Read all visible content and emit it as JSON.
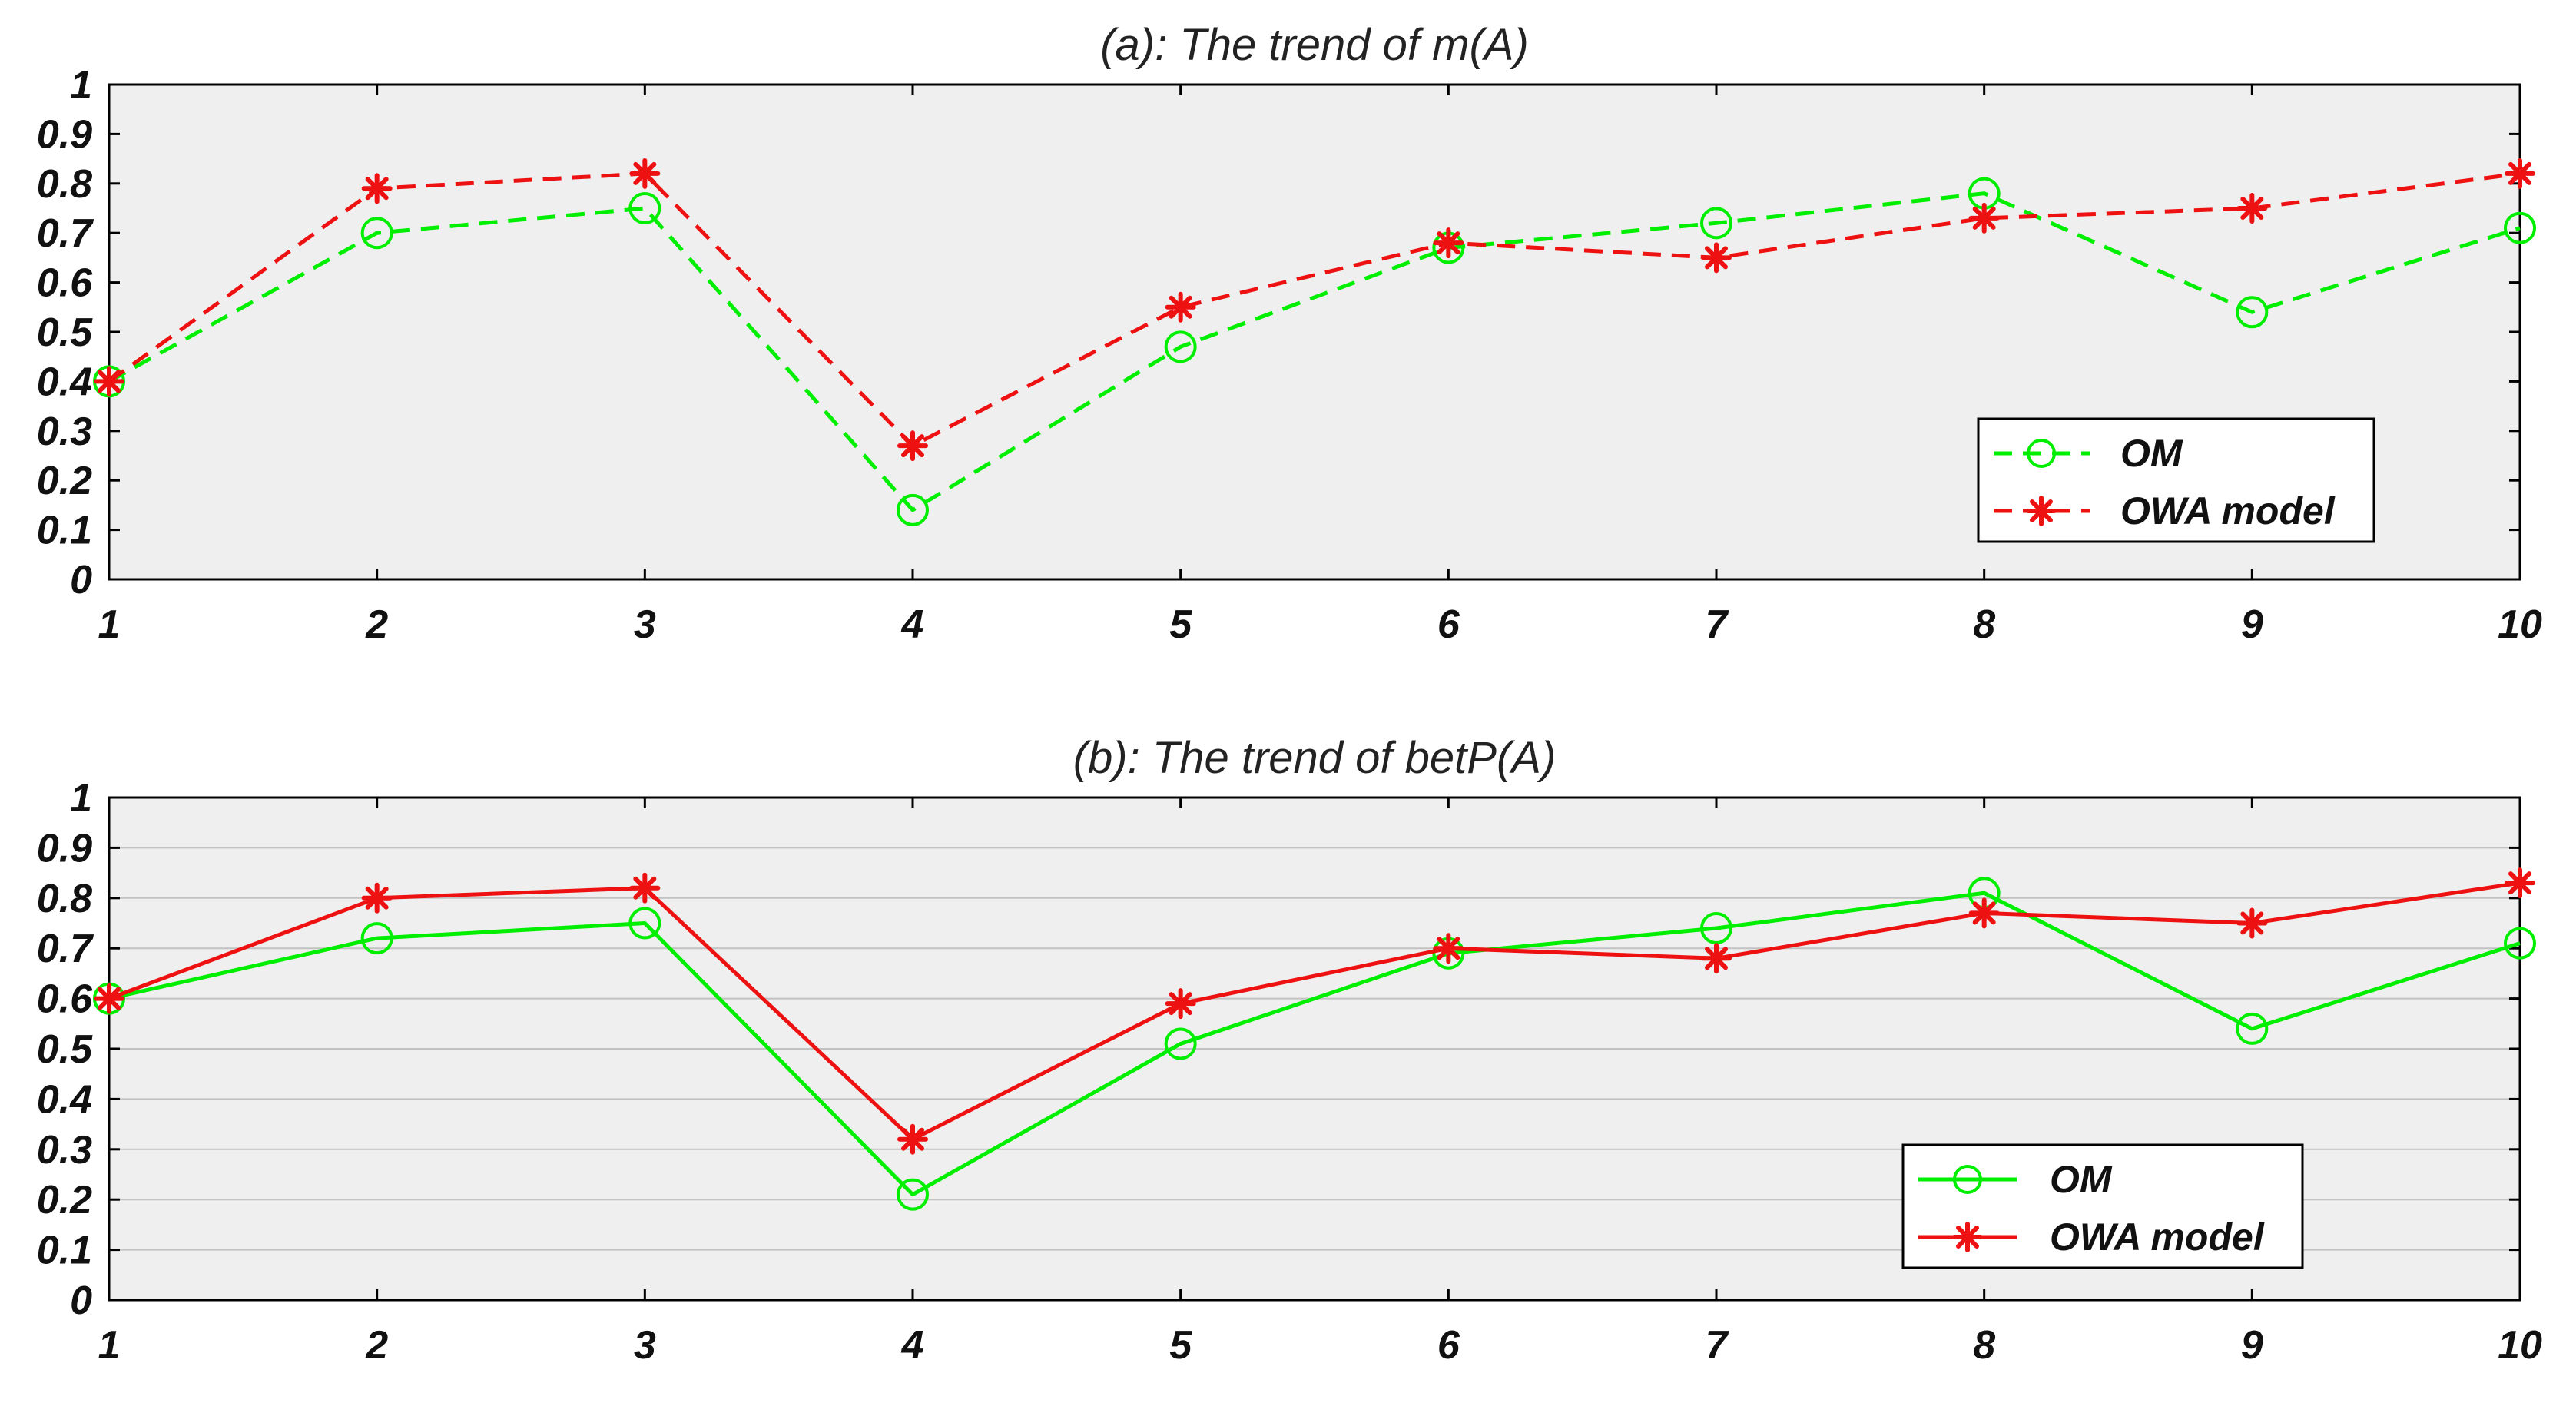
{
  "chart_data": [
    {
      "type": "line",
      "title": "(a): The trend of m(A)",
      "line_style": "dashed",
      "grid": false,
      "x": [
        1,
        2,
        3,
        4,
        5,
        6,
        7,
        8,
        9,
        10
      ],
      "xlim": [
        1,
        10
      ],
      "ylim": [
        0,
        1
      ],
      "xticks": [
        "1",
        "2",
        "3",
        "4",
        "5",
        "6",
        "7",
        "8",
        "9",
        "10"
      ],
      "yticks": [
        "0",
        "0.1",
        "0.2",
        "0.3",
        "0.4",
        "0.5",
        "0.6",
        "0.7",
        "0.8",
        "0.9",
        "1"
      ],
      "legend_position": "lower-right",
      "series": [
        {
          "name": "OM",
          "color": "#00ee00",
          "marker": "circle",
          "values": [
            0.4,
            0.7,
            0.75,
            0.14,
            0.47,
            0.67,
            0.72,
            0.78,
            0.54,
            0.71
          ]
        },
        {
          "name": "OWA model",
          "color": "#ee1111",
          "marker": "asterisk",
          "values": [
            0.4,
            0.79,
            0.82,
            0.27,
            0.55,
            0.68,
            0.65,
            0.73,
            0.75,
            0.82
          ]
        }
      ]
    },
    {
      "type": "line",
      "title": "(b): The trend of betP(A)",
      "line_style": "solid",
      "grid": true,
      "x": [
        1,
        2,
        3,
        4,
        5,
        6,
        7,
        8,
        9,
        10
      ],
      "xlim": [
        1,
        10
      ],
      "ylim": [
        0,
        1
      ],
      "xticks": [
        "1",
        "2",
        "3",
        "4",
        "5",
        "6",
        "7",
        "8",
        "9",
        "10"
      ],
      "yticks": [
        "0",
        "0.1",
        "0.2",
        "0.3",
        "0.4",
        "0.5",
        "0.6",
        "0.7",
        "0.8",
        "0.9",
        "1"
      ],
      "legend_position": "lower-right",
      "series": [
        {
          "name": "OM",
          "color": "#00ee00",
          "marker": "circle",
          "values": [
            0.6,
            0.72,
            0.75,
            0.21,
            0.51,
            0.69,
            0.74,
            0.81,
            0.54,
            0.71
          ]
        },
        {
          "name": "OWA model",
          "color": "#ee1111",
          "marker": "asterisk",
          "values": [
            0.6,
            0.8,
            0.82,
            0.32,
            0.59,
            0.7,
            0.68,
            0.77,
            0.75,
            0.83
          ]
        }
      ]
    }
  ]
}
